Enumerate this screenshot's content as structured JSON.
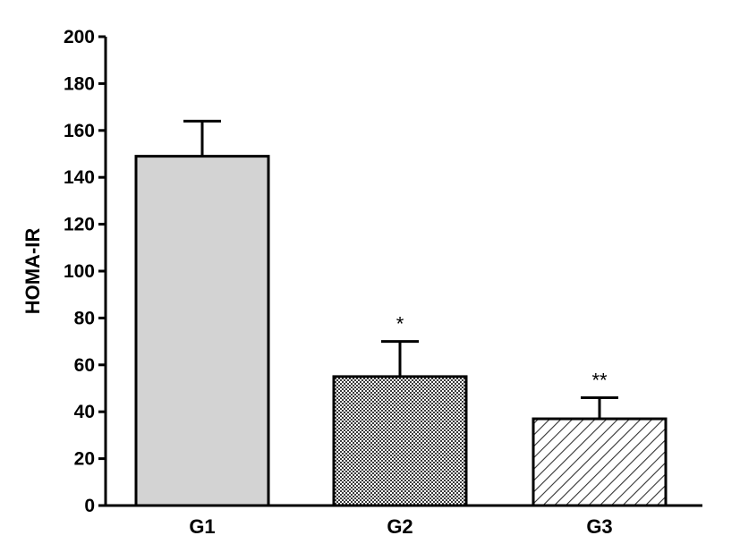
{
  "chart_data": {
    "type": "bar",
    "title": "",
    "xlabel": "",
    "ylabel": "HOMA-IR",
    "ylim": [
      0,
      200
    ],
    "yticks": [
      0,
      20,
      40,
      60,
      80,
      100,
      120,
      140,
      160,
      180,
      200
    ],
    "categories": [
      "G1",
      "G2",
      "G3"
    ],
    "values": [
      149,
      55,
      37
    ],
    "error_upper": [
      164,
      70,
      46
    ],
    "annotations": [
      "",
      "*",
      "**"
    ],
    "fills": [
      "solid-light-gray",
      "checkered",
      "diagonal-hatch"
    ],
    "colors": {
      "g1_fill": "#d3d3d3",
      "outline": "#000000"
    },
    "grid": false,
    "legend": "none"
  }
}
